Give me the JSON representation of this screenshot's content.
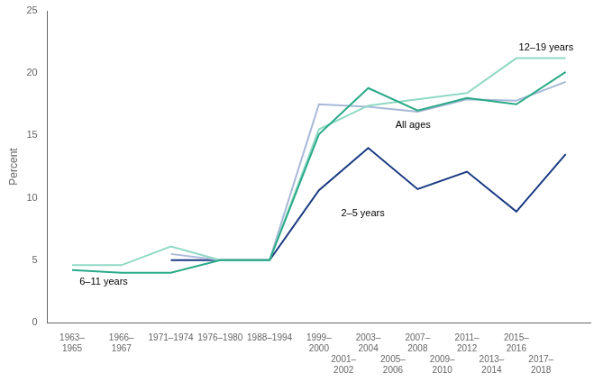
{
  "chart_data": {
    "type": "line",
    "ylabel": "Percent",
    "series": [
      {
        "name": "6–11 years",
        "color": "#2aaa88",
        "x": [
          0,
          1,
          2,
          3,
          4,
          5,
          6,
          7,
          8,
          9,
          10
        ],
        "values": [
          4.2,
          4.0,
          4.0,
          5.0,
          5.0,
          15.1,
          18.8,
          17.0,
          18.0,
          17.5,
          20.1
        ]
      },
      {
        "name": "12–19 years",
        "color": "#90d9c5",
        "x": [
          0,
          1,
          2,
          3,
          4,
          5,
          6,
          7,
          8,
          9,
          10
        ],
        "values": [
          4.6,
          4.6,
          6.1,
          5.0,
          5.0,
          15.5,
          17.4,
          17.9,
          18.4,
          21.2,
          21.2
        ]
      },
      {
        "name": "All ages",
        "color": "#a8b8d8",
        "x": [
          2,
          3,
          4,
          5,
          6,
          7,
          8,
          9,
          10
        ],
        "values": [
          5.5,
          5.0,
          5.0,
          17.5,
          17.3,
          16.9,
          17.9,
          17.8,
          19.3
        ]
      },
      {
        "name": "2–5 years",
        "color": "#1a3a82",
        "x": [
          2,
          3,
          4,
          5,
          6,
          7,
          8,
          9,
          10
        ],
        "values": [
          5.0,
          5.0,
          5.0,
          10.6,
          14.0,
          10.7,
          12.1,
          8.9,
          13.5
        ]
      }
    ],
    "annotations": [
      {
        "text": "6–11 years",
        "x": 0.15,
        "y": 3.0
      },
      {
        "text": "12–19 years",
        "x": 9.05,
        "y": 21.8
      },
      {
        "text": "All ages",
        "x": 6.55,
        "y": 15.6
      },
      {
        "text": "2–5 years",
        "x": 5.45,
        "y": 8.5
      }
    ],
    "xlim": [
      -0.5,
      10.5
    ],
    "xticks": [
      {
        "value": 0,
        "label": "1963–\n1965"
      },
      {
        "value": 1,
        "label": "1966–\n1967"
      },
      {
        "value": 2,
        "label": "1971–1974"
      },
      {
        "value": 3,
        "label": "1976–1980"
      },
      {
        "value": 4,
        "label": "1988–1994"
      },
      {
        "value": 5,
        "label": "1999–\n2000"
      },
      {
        "value": 5.5,
        "label": "2001–\n2002"
      },
      {
        "value": 6,
        "label": "2003–\n2004"
      },
      {
        "value": 6.5,
        "label": "2005–\n2006"
      },
      {
        "value": 7,
        "label": "2007–\n2008"
      },
      {
        "value": 7.5,
        "label": "2009–\n2010"
      },
      {
        "value": 8,
        "label": "2011–\n2012"
      },
      {
        "value": 8.5,
        "label": "2013–\n2014"
      },
      {
        "value": 9,
        "label": "2015–\n2016"
      },
      {
        "value": 9.5,
        "label": "2017–\n2018"
      }
    ],
    "ylim": [
      0,
      25
    ],
    "yticks": [
      0,
      5,
      10,
      15,
      20,
      25
    ],
    "grid": false
  }
}
